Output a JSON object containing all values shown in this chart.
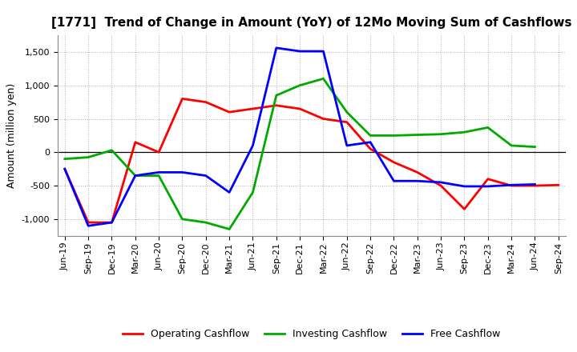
{
  "title": "[1771]  Trend of Change in Amount (YoY) of 12Mo Moving Sum of Cashflows",
  "ylabel": "Amount (million yen)",
  "labels": [
    "Jun-19",
    "Sep-19",
    "Dec-19",
    "Mar-20",
    "Jun-20",
    "Sep-20",
    "Dec-20",
    "Mar-21",
    "Jun-21",
    "Sep-21",
    "Dec-21",
    "Mar-22",
    "Jun-22",
    "Sep-22",
    "Dec-22",
    "Mar-23",
    "Jun-23",
    "Sep-23",
    "Dec-23",
    "Mar-24",
    "Jun-24",
    "Sep-24"
  ],
  "operating": [
    -250,
    -1050,
    -1050,
    150,
    0,
    800,
    750,
    600,
    650,
    700,
    650,
    500,
    450,
    50,
    -150,
    -300,
    -500,
    -850,
    -400,
    -500,
    -500,
    -490
  ],
  "investing": [
    -100,
    -75,
    30,
    -350,
    -350,
    -1000,
    -1050,
    -1150,
    -600,
    850,
    1000,
    1100,
    600,
    250,
    250,
    260,
    270,
    300,
    370,
    100,
    80,
    null
  ],
  "free": [
    -250,
    -1100,
    -1050,
    -350,
    -300,
    -300,
    -350,
    -600,
    100,
    1560,
    1510,
    1510,
    100,
    150,
    -430,
    -430,
    -450,
    -510,
    -510,
    -490,
    -480,
    null
  ],
  "operating_color": "#ff0000",
  "investing_color": "#00aa00",
  "free_color": "#0000ff",
  "ylim": [
    -1250,
    1750
  ],
  "yticks": [
    -1000,
    -500,
    0,
    500,
    1000,
    1500
  ],
  "background_color": "#ffffff",
  "grid_color": "#999999",
  "title_fontsize": 11,
  "axis_label_fontsize": 9,
  "tick_fontsize": 8,
  "legend_fontsize": 9,
  "linewidth": 2.0
}
